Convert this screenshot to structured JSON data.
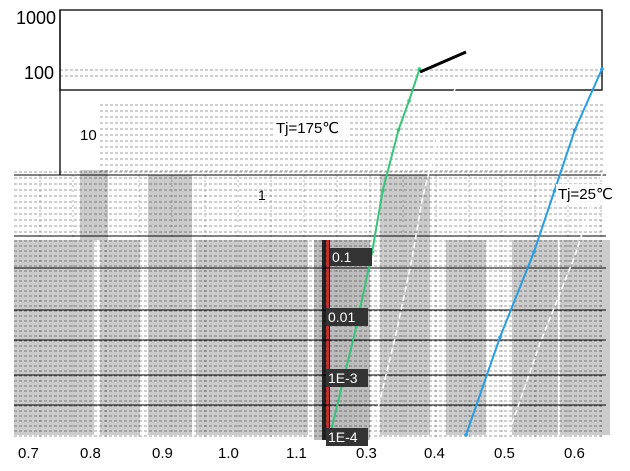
{
  "chart_data": {
    "type": "line",
    "title": "",
    "xlabel": "",
    "ylabel": "",
    "y_log": true,
    "y_tick_labels": [
      "1000",
      "100",
      "10",
      "1",
      "0.1",
      "0.01",
      "1E-3",
      "1E-4"
    ],
    "x_tick_labels": [
      "0.7",
      "0.8",
      "0.9",
      "1.0",
      "1.1",
      "0.3",
      "0.4",
      "0.5",
      "0.6"
    ],
    "series": [
      {
        "name": "Tj=175℃",
        "points": [
          [
            0.3,
            0.0001
          ],
          [
            0.35,
            0.006
          ],
          [
            0.38,
            0.1
          ],
          [
            0.4,
            1
          ],
          [
            0.43,
            10
          ],
          [
            0.45,
            30
          ],
          [
            0.47,
            100
          ]
        ]
      },
      {
        "name": "Tj=25℃",
        "points": [
          [
            0.4,
            0.0001
          ],
          [
            0.45,
            0.004
          ],
          [
            0.5,
            0.1
          ],
          [
            0.53,
            1
          ],
          [
            0.56,
            10
          ],
          [
            0.6,
            100
          ]
        ]
      }
    ],
    "annotations": [
      "Tj=175℃",
      "Tj=25℃"
    ],
    "grid": true,
    "colors": {
      "tj175": "#3ac47a",
      "tj25": "#2a9ee0",
      "grid": "#000000",
      "bar": "#a0a0a0"
    }
  }
}
